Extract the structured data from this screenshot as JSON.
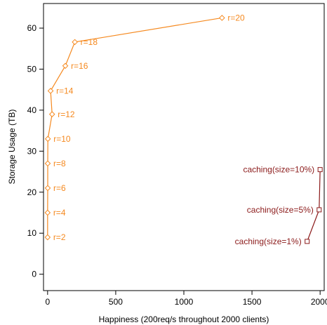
{
  "chart_data": {
    "type": "line",
    "title": "",
    "xlabel": "Happiness (200req/s throughout 2000 clients)",
    "ylabel": "Storage Usage (TB)",
    "xlim": [
      -30,
      2030
    ],
    "ylim": [
      -4,
      66
    ],
    "xticks": [
      0,
      500,
      1000,
      1500,
      2000
    ],
    "yticks": [
      0,
      10,
      20,
      30,
      40,
      50,
      60
    ],
    "grid": false,
    "legend": "none",
    "series": [
      {
        "marker": "diamond",
        "color": "#F5891F",
        "points": [
          {
            "x": 0,
            "y": 9,
            "label": "r=2"
          },
          {
            "x": 0,
            "y": 15,
            "label": "r=4"
          },
          {
            "x": 1,
            "y": 21,
            "label": "r=6"
          },
          {
            "x": 1,
            "y": 27,
            "label": "r=8"
          },
          {
            "x": 2,
            "y": 33,
            "label": "r=10"
          },
          {
            "x": 33,
            "y": 39,
            "label": "r=12"
          },
          {
            "x": 22,
            "y": 44.7,
            "label": "r=14"
          },
          {
            "x": 130,
            "y": 50.8,
            "label": "r=16"
          },
          {
            "x": 200,
            "y": 56.6,
            "label": "r=18"
          },
          {
            "x": 1280,
            "y": 62.5,
            "label": "r=20"
          }
        ]
      },
      {
        "marker": "square",
        "color": "#8B1A1A",
        "points": [
          {
            "x": 1905,
            "y": 8,
            "label": "caching(size=1%)"
          },
          {
            "x": 1993,
            "y": 15.7,
            "label": "caching(size=5%)"
          },
          {
            "x": 2000,
            "y": 25.5,
            "label": "caching(size=10%)"
          }
        ]
      }
    ]
  }
}
